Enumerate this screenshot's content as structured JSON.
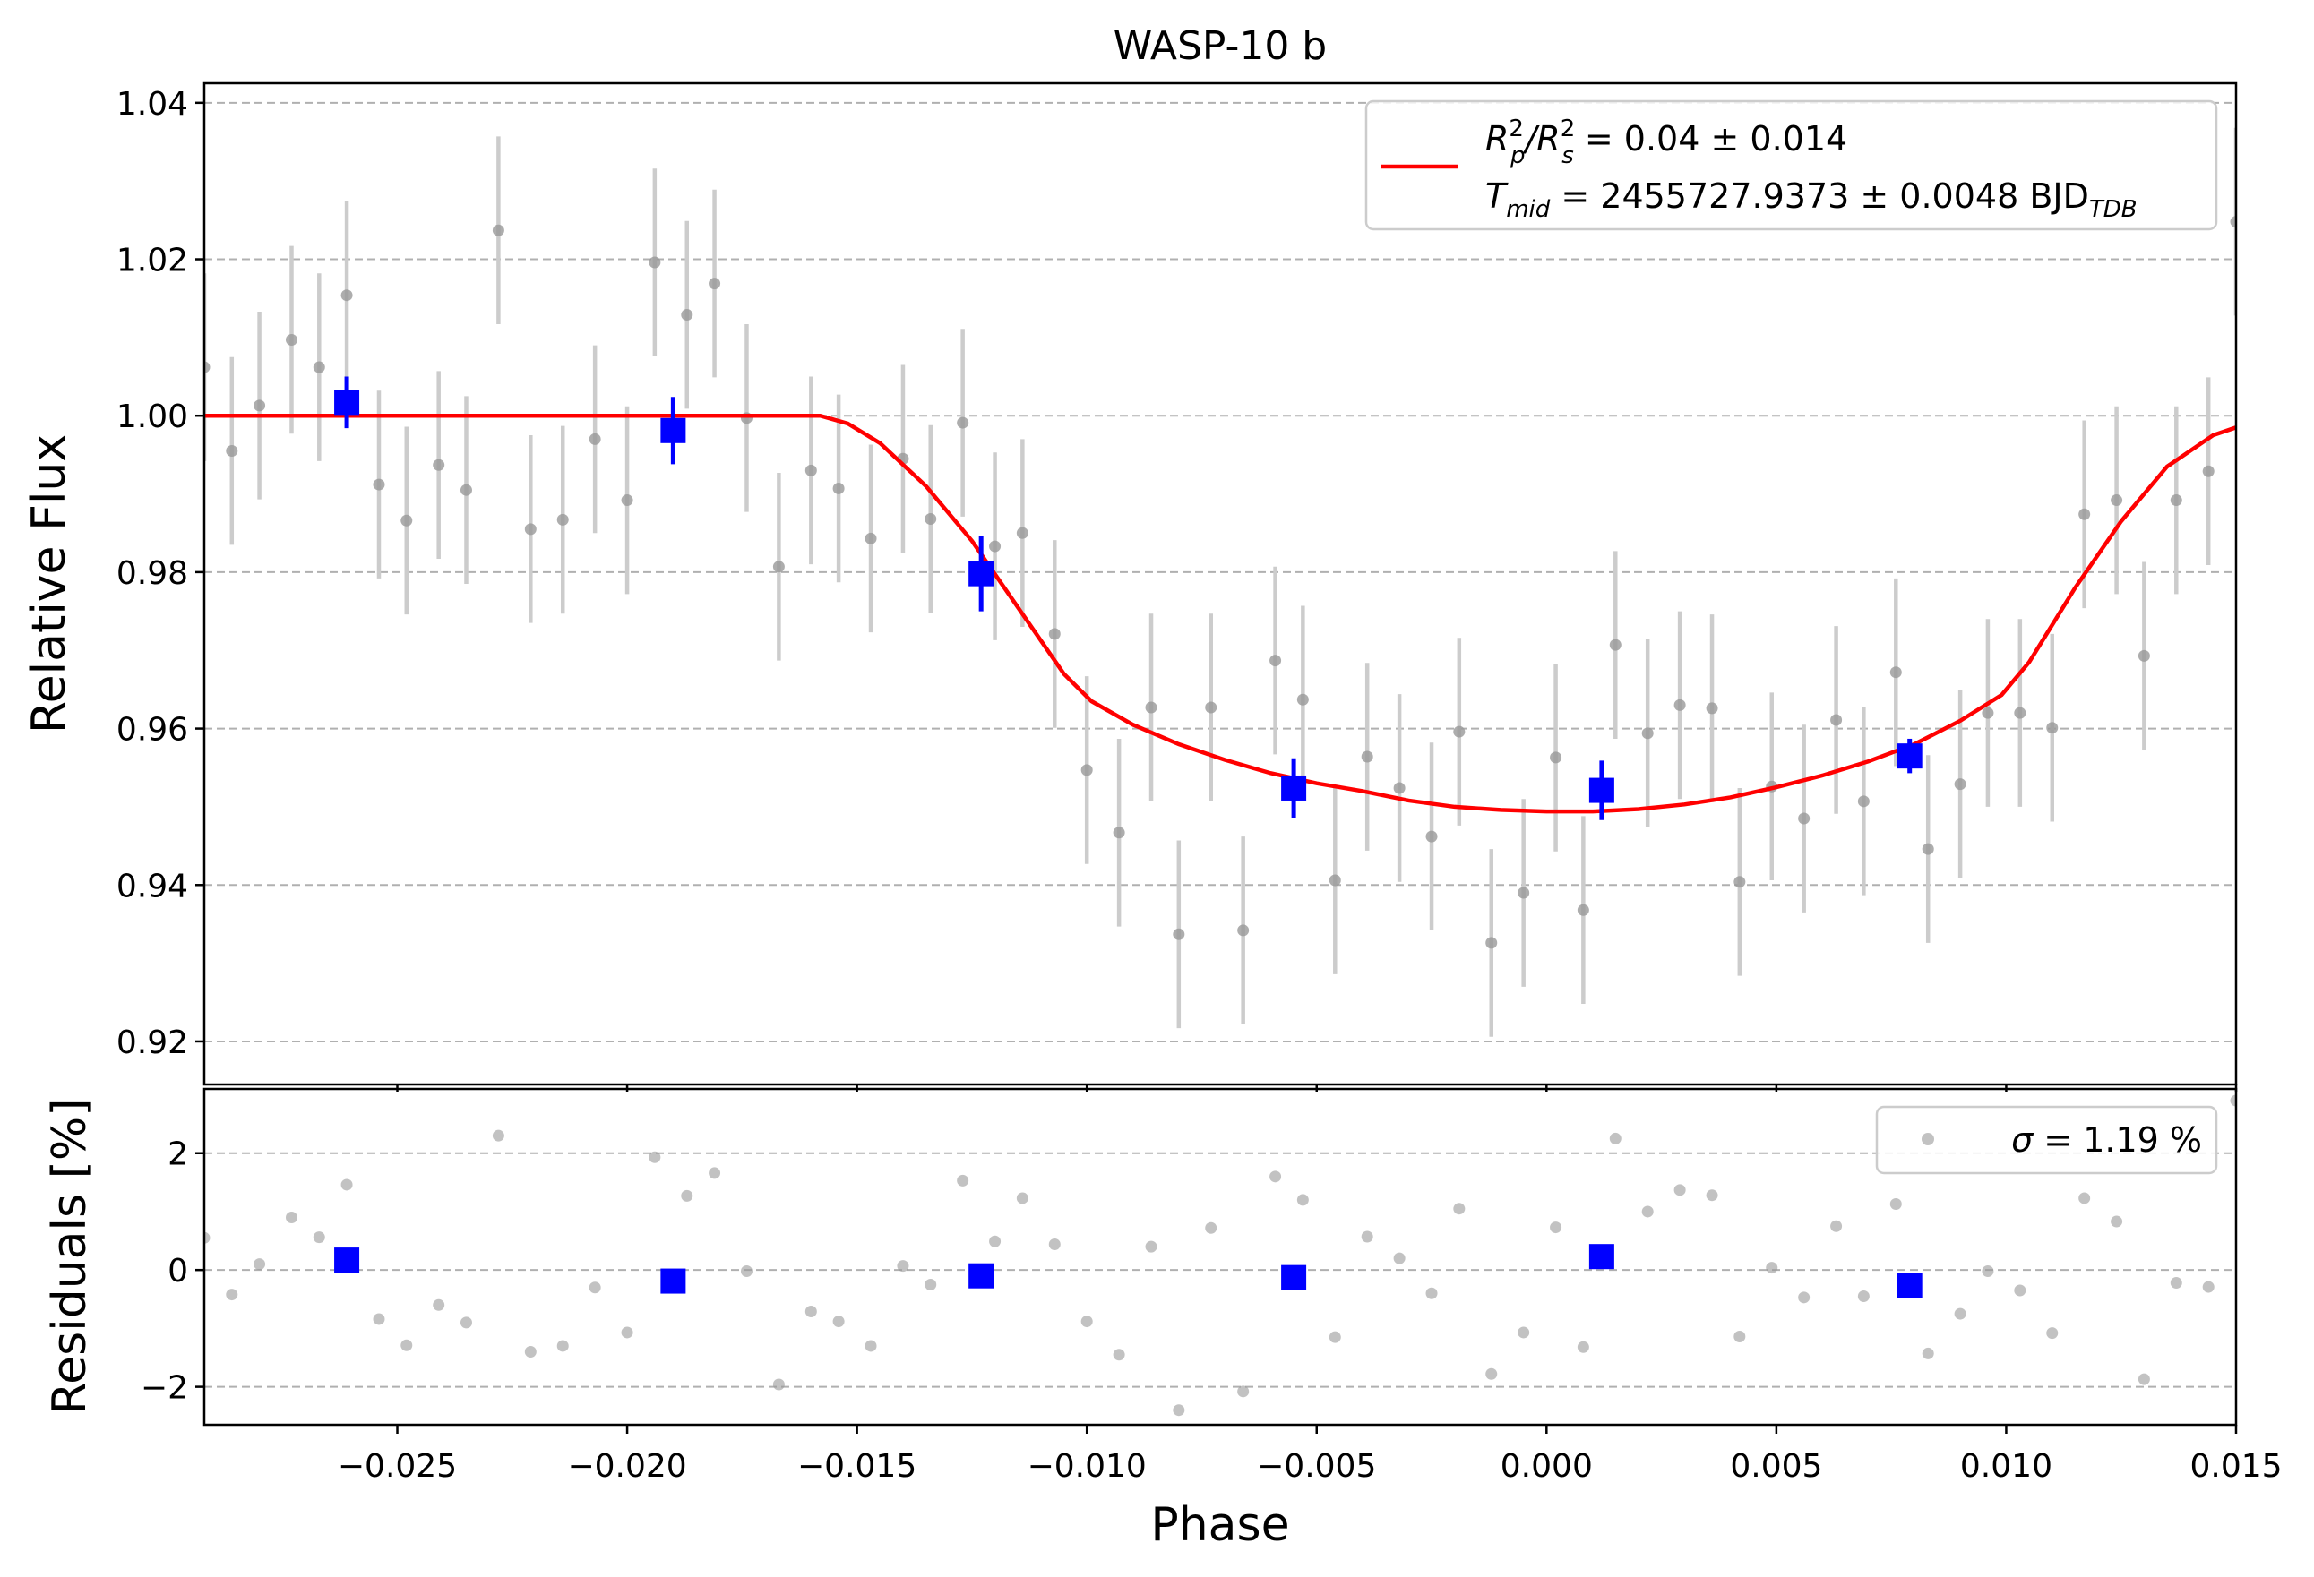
{
  "colors": {
    "data_points": "#999999",
    "error_bars": "#cccccc",
    "binned": "#0000ff",
    "model": "#ff0000",
    "grid": "#b0b0b0"
  },
  "chart_data": [
    {
      "type": "scatter",
      "panel": "top",
      "title": "WASP-10 b",
      "xlabel": "",
      "ylabel": "Relative Flux",
      "xlim": [
        -0.0292,
        0.015
      ],
      "ylim": [
        0.9145,
        1.0425
      ],
      "grid": true,
      "grid_axis": "y",
      "xticks": [
        -0.025,
        -0.02,
        -0.015,
        -0.01,
        -0.005,
        0.0,
        0.005,
        0.01,
        0.015
      ],
      "yticks": [
        0.92,
        0.94,
        0.96,
        0.98,
        1.0,
        1.02,
        1.04
      ],
      "ytick_labels": [
        "0.92",
        "0.94",
        "0.96",
        "0.98",
        "1.00",
        "1.02",
        "1.04"
      ],
      "legend": {
        "placement": "upper right",
        "line1": {
          "base": "R",
          "sup1": "2",
          "sub1": "p",
          "sep": "/R",
          "sup2": "2",
          "sub2": "s",
          "tail": " = 0.04 ± 0.014"
        },
        "line2": {
          "base": "T",
          "sub": "mid",
          "tail": " = 2455727.9373 ± 0.0048 BJD",
          "sub2": "TDB"
        }
      },
      "model": {
        "name": "transit model",
        "x": [
          -0.0292,
          -0.018,
          -0.0158,
          -0.0152,
          -0.0145,
          -0.0135,
          -0.0125,
          -0.0115,
          -0.0105,
          -0.0099,
          -0.009,
          -0.008,
          -0.007,
          -0.006,
          -0.005,
          -0.004,
          -0.003,
          -0.002,
          -0.001,
          0.0,
          0.001,
          0.002,
          0.003,
          0.004,
          0.005,
          0.006,
          0.007,
          0.008,
          0.009,
          0.0099,
          0.0105,
          0.0115,
          0.0125,
          0.0135,
          0.0145,
          0.015
        ],
        "y": [
          1.0,
          1.0,
          1.0,
          0.999,
          0.9965,
          0.991,
          0.984,
          0.9755,
          0.967,
          0.9635,
          0.9605,
          0.958,
          0.956,
          0.9543,
          0.953,
          0.952,
          0.9508,
          0.95,
          0.9496,
          0.9494,
          0.9494,
          0.9497,
          0.9503,
          0.9512,
          0.9525,
          0.954,
          0.9558,
          0.958,
          0.961,
          0.9643,
          0.9685,
          0.978,
          0.9865,
          0.9935,
          0.9975,
          0.9985
        ]
      },
      "data": {
        "x": [
          -0.0292,
          -0.0286,
          -0.028,
          -0.0273,
          -0.0267,
          -0.0261,
          -0.0254,
          -0.0248,
          -0.0241,
          -0.0235,
          -0.0228,
          -0.0221,
          -0.0214,
          -0.0207,
          -0.02,
          -0.0194,
          -0.0187,
          -0.0181,
          -0.0174,
          -0.0167,
          -0.016,
          -0.0154,
          -0.0147,
          -0.014,
          -0.0134,
          -0.0127,
          -0.012,
          -0.0114,
          -0.0107,
          -0.01,
          -0.0093,
          -0.0086,
          -0.008,
          -0.0073,
          -0.0066,
          -0.0059,
          -0.0053,
          -0.0046,
          -0.0039,
          -0.0032,
          -0.0025,
          -0.0019,
          -0.0012,
          -0.0005,
          0.0002,
          0.0008,
          0.0015,
          0.0022,
          0.0029,
          0.0036,
          0.0042,
          0.0049,
          0.0056,
          0.0063,
          0.0069,
          0.0076,
          0.0083,
          0.009,
          0.0096,
          0.0103,
          0.011,
          0.0117,
          0.0124,
          0.013,
          0.0137,
          0.0144,
          0.015
        ],
        "y": [
          1.0062,
          0.9955,
          1.0013,
          1.0097,
          1.0062,
          1.0154,
          0.9912,
          0.9866,
          0.9937,
          0.9905,
          1.0237,
          0.9855,
          0.9867,
          0.997,
          0.9892,
          1.0196,
          1.0129,
          1.0169,
          0.9997,
          0.9807,
          0.993,
          0.9907,
          0.9843,
          0.9945,
          0.9868,
          0.9991,
          0.9833,
          0.985,
          0.9721,
          0.9547,
          0.9467,
          0.9627,
          0.9337,
          0.9627,
          0.9342,
          0.9687,
          0.9637,
          0.9406,
          0.9564,
          0.9524,
          0.9462,
          0.9596,
          0.9326,
          0.939,
          0.9563,
          0.9368,
          0.9707,
          0.9594,
          0.963,
          0.9626,
          0.9404,
          0.9526,
          0.9485,
          0.9611,
          0.9507,
          0.9672,
          0.9446,
          0.9529,
          0.962,
          0.962,
          0.9601,
          0.9874,
          0.9892,
          0.9693,
          0.9892,
          0.9929,
          1.0248
        ],
        "error": 0.012
      },
      "binned": {
        "name": "binned",
        "x": [
          -0.0261,
          -0.019,
          -0.0123,
          -0.0055,
          0.0012,
          0.0079
        ],
        "y": [
          1.0017,
          0.9981,
          0.9798,
          0.9524,
          0.9521,
          0.9565
        ],
        "error": [
          0.0033,
          0.0043,
          0.0048,
          0.0038,
          0.0038,
          0.0022
        ]
      }
    },
    {
      "type": "scatter",
      "panel": "bottom",
      "title": "",
      "xlabel": "Phase",
      "ylabel": "Residuals [%]",
      "xlim": [
        -0.0292,
        0.015
      ],
      "ylim": [
        -2.65,
        3.1
      ],
      "grid": true,
      "grid_axis": "y",
      "xticks": [
        -0.025,
        -0.02,
        -0.015,
        -0.01,
        -0.005,
        0.0,
        0.005,
        0.01,
        0.015
      ],
      "xtick_labels": [
        "−0.025",
        "−0.020",
        "−0.015",
        "−0.010",
        "−0.005",
        "0.000",
        "0.005",
        "0.010",
        "0.015"
      ],
      "yticks": [
        -2,
        0,
        2
      ],
      "ytick_labels": [
        "−2",
        "0",
        "2"
      ],
      "legend": {
        "placement": "upper right",
        "label_symbol": "σ",
        "label_tail": " = 1.19 %"
      },
      "data": {
        "x": [
          -0.0292,
          -0.0286,
          -0.028,
          -0.0273,
          -0.0267,
          -0.0261,
          -0.0254,
          -0.0248,
          -0.0241,
          -0.0235,
          -0.0228,
          -0.0221,
          -0.0214,
          -0.0207,
          -0.02,
          -0.0194,
          -0.0187,
          -0.0181,
          -0.0174,
          -0.0167,
          -0.016,
          -0.0154,
          -0.0147,
          -0.014,
          -0.0134,
          -0.0127,
          -0.012,
          -0.0114,
          -0.0107,
          -0.01,
          -0.0093,
          -0.0086,
          -0.008,
          -0.0073,
          -0.0066,
          -0.0059,
          -0.0053,
          -0.0046,
          -0.0039,
          -0.0032,
          -0.0025,
          -0.0019,
          -0.0012,
          -0.0005,
          0.0002,
          0.0008,
          0.0015,
          0.0022,
          0.0029,
          0.0036,
          0.0042,
          0.0049,
          0.0056,
          0.0063,
          0.0069,
          0.0076,
          0.0083,
          0.009,
          0.0096,
          0.0103,
          0.011,
          0.0117,
          0.0124,
          0.013,
          0.0137,
          0.0144,
          0.015
        ],
        "y": [
          0.55,
          -0.42,
          0.1,
          0.9,
          0.56,
          1.46,
          -0.84,
          -1.29,
          -0.6,
          -0.9,
          2.3,
          -1.4,
          -1.3,
          -0.3,
          -1.07,
          1.93,
          1.27,
          1.66,
          -0.02,
          -1.96,
          -0.71,
          -0.88,
          -1.3,
          0.07,
          -0.25,
          1.53,
          0.49,
          1.23,
          0.44,
          -0.88,
          -1.45,
          0.4,
          -2.4,
          0.72,
          -2.08,
          1.6,
          1.2,
          -1.15,
          0.57,
          0.2,
          -0.4,
          1.05,
          -1.78,
          -1.07,
          0.73,
          -1.32,
          2.25,
          1.0,
          1.37,
          1.28,
          -1.14,
          0.04,
          -0.47,
          0.75,
          -0.45,
          1.13,
          -1.43,
          -0.75,
          -0.02,
          -0.35,
          -1.08,
          1.23,
          0.83,
          -1.87,
          -0.22,
          -0.29,
          2.9
        ]
      },
      "binned": {
        "name": "binned",
        "x": [
          -0.0261,
          -0.019,
          -0.0123,
          -0.0055,
          0.0012,
          0.0079
        ],
        "y": [
          0.17,
          -0.19,
          -0.1,
          -0.13,
          0.23,
          -0.27
        ]
      }
    }
  ]
}
